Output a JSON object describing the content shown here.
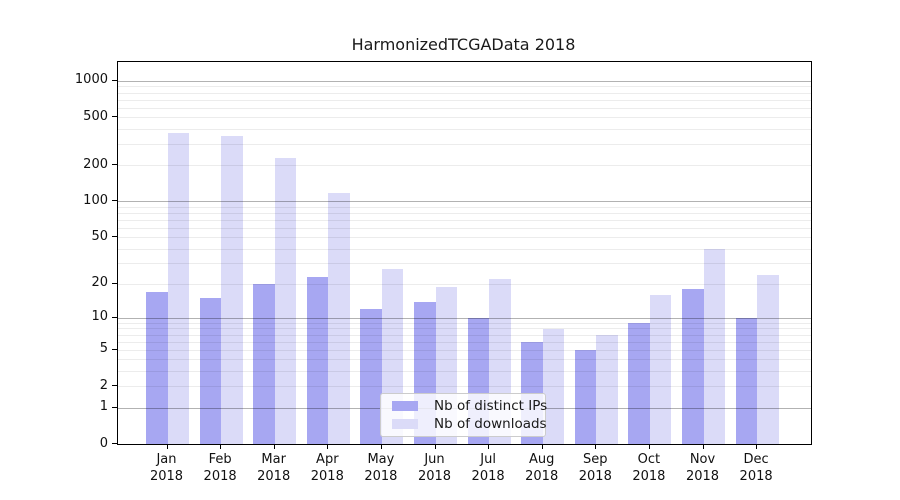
{
  "chart_data": {
    "type": "bar",
    "title": "HarmonizedTCGAData 2018",
    "categories": [
      "Jan",
      "Feb",
      "Mar",
      "Apr",
      "May",
      "Jun",
      "Jul",
      "Aug",
      "Sep",
      "Oct",
      "Nov",
      "Dec"
    ],
    "x_year_line": "2018",
    "series": [
      {
        "name": "Nb of distinct IPs",
        "color": "#a7a7f2",
        "values": [
          17,
          15,
          20,
          23,
          12,
          14,
          10,
          6,
          5,
          9,
          18,
          10
        ]
      },
      {
        "name": "Nb of downloads",
        "color": "#dbdbf8",
        "values": [
          370,
          350,
          230,
          117,
          27,
          19,
          22,
          8,
          7,
          16,
          40,
          24
        ]
      }
    ],
    "xlabel": "",
    "ylabel": "",
    "yscale": "log10(1+x)",
    "ylim": [
      0,
      1430
    ],
    "yticks": [
      0,
      1,
      2,
      5,
      10,
      20,
      50,
      100,
      200,
      500,
      1000
    ],
    "major_gridlines": [
      1,
      10,
      100,
      1000
    ],
    "minor_gridlines": [
      2,
      3,
      4,
      5,
      6,
      7,
      8,
      9,
      20,
      30,
      40,
      50,
      60,
      70,
      80,
      90,
      200,
      300,
      400,
      500,
      600,
      700,
      800,
      900
    ],
    "grid": true,
    "legend_position": "bottom-center"
  },
  "colors": {
    "axis": "#000000",
    "title_text": "#1a1a1a",
    "tick_text": "#111111",
    "legend_border": "#cccccc",
    "background": "#ffffff"
  }
}
